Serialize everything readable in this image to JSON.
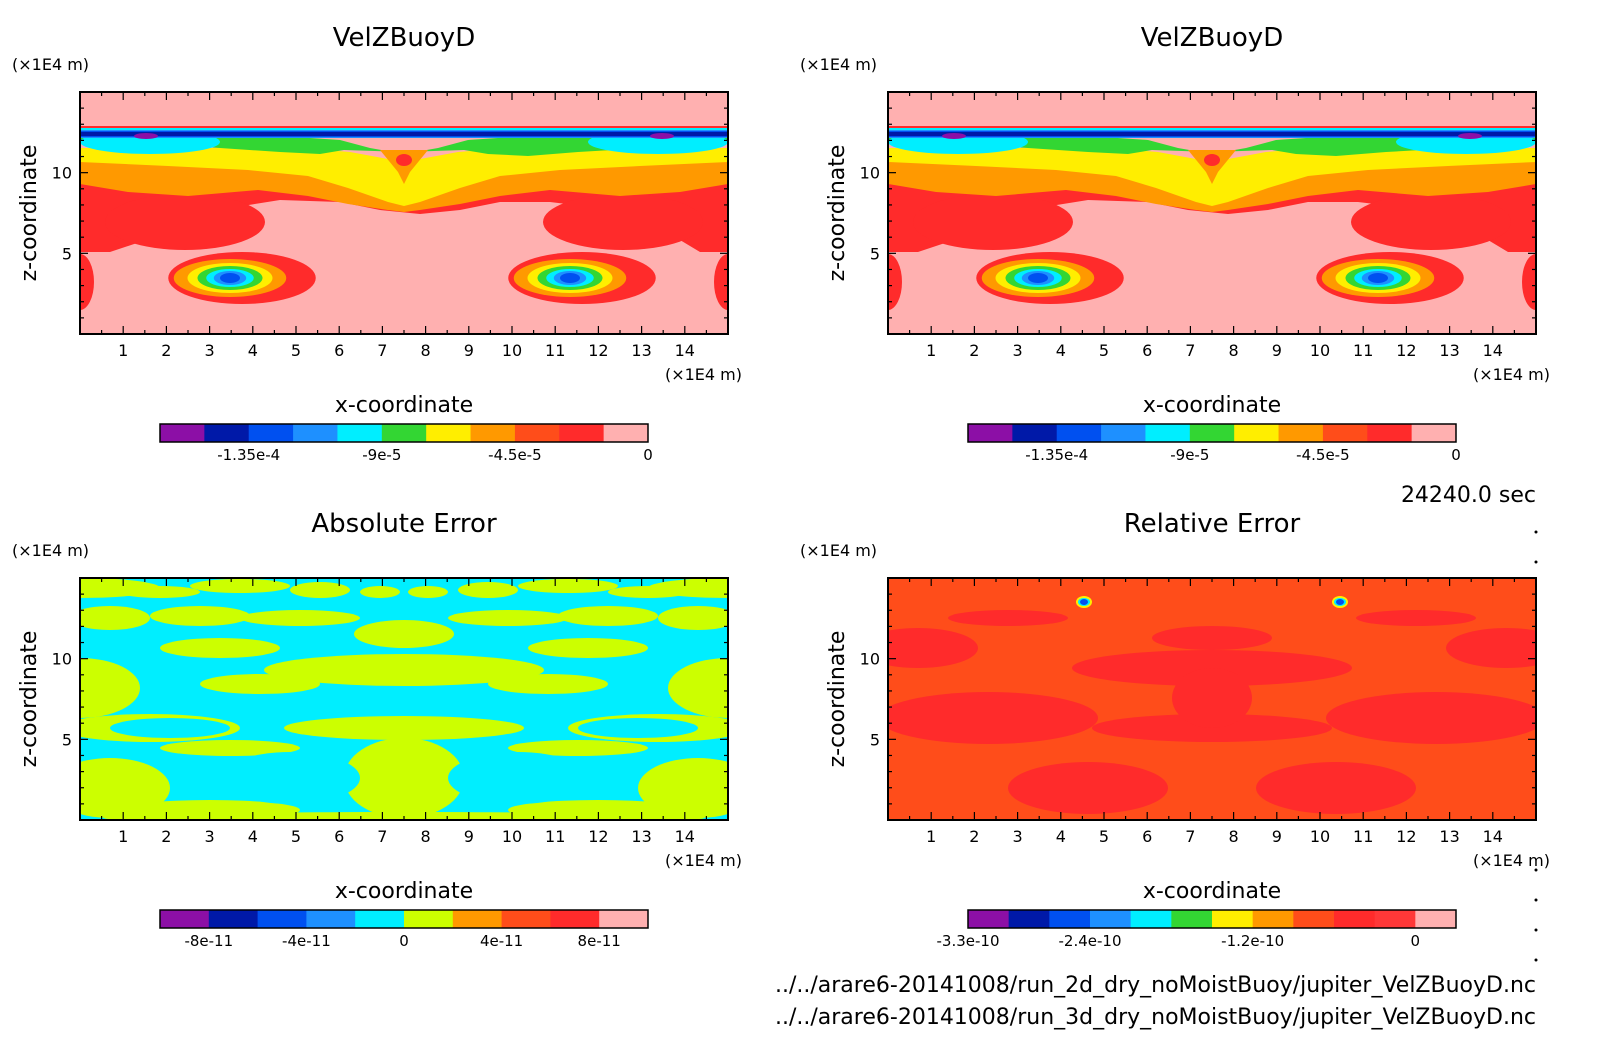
{
  "time_label": "24240.0 sec",
  "file_paths": [
    "../../arare6-20141008/run_2d_dry_noMoistBuoy/jupiter_VelZBuoyD.nc",
    "../../arare6-20141008/run_3d_dry_noMoistBuoy/jupiter_VelZBuoyD.nc"
  ],
  "colors": {
    "field_palette": [
      "#8c0fa6",
      "#0019a8",
      "#0050f0",
      "#1e90ff",
      "#00eeff",
      "#33d633",
      "#ffee00",
      "#ff9900",
      "#ff4d1a",
      "#ff2b2b",
      "#ffb0b0"
    ],
    "abs_palette": [
      "#8c0fa6",
      "#0019a8",
      "#0050f0",
      "#1e90ff",
      "#00eeff",
      "#ccff00",
      "#ff9900",
      "#ff4d1a",
      "#ff2b2b",
      "#ffb0b0"
    ],
    "rel_palette": [
      "#8c0fa6",
      "#0019a8",
      "#0050f0",
      "#1e90ff",
      "#00eeff",
      "#33d633",
      "#ffee00",
      "#ff9900",
      "#ff4d1a",
      "#ff2b2b",
      "#ff3838",
      "#ffb0b0"
    ]
  },
  "chart_data": [
    {
      "id": "panel_tl",
      "type": "heatmap",
      "title": "VelZBuoyD",
      "xlabel": "x-coordinate",
      "ylabel": "z-coordinate",
      "x_unit": "(×1E4 m)",
      "y_unit": "(×1E4 m)",
      "xlim": [
        0,
        15
      ],
      "ylim": [
        0,
        15
      ],
      "x_ticks": [
        "1",
        "2",
        "3",
        "4",
        "5",
        "6",
        "7",
        "8",
        "9",
        "10",
        "11",
        "12",
        "13",
        "14"
      ],
      "y_ticks": [
        "5",
        "10"
      ],
      "field": "buoy",
      "colorbar_labels": [
        "-1.35e-4",
        "-9e-5",
        "-4.5e-5",
        "0"
      ],
      "colorbar_values": [
        -0.000135,
        -9e-05,
        -4.5e-05,
        0
      ],
      "colorbar_range": [
        -0.000165,
        0.0
      ]
    },
    {
      "id": "panel_tr",
      "type": "heatmap",
      "title": "VelZBuoyD",
      "xlabel": "x-coordinate",
      "ylabel": "z-coordinate",
      "x_unit": "(×1E4 m)",
      "y_unit": "(×1E4 m)",
      "xlim": [
        0,
        15
      ],
      "ylim": [
        0,
        15
      ],
      "x_ticks": [
        "1",
        "2",
        "3",
        "4",
        "5",
        "6",
        "7",
        "8",
        "9",
        "10",
        "11",
        "12",
        "13",
        "14"
      ],
      "y_ticks": [
        "5",
        "10"
      ],
      "field": "buoy",
      "colorbar_labels": [
        "-1.35e-4",
        "-9e-5",
        "-4.5e-5",
        "0"
      ],
      "colorbar_values": [
        -0.000135,
        -9e-05,
        -4.5e-05,
        0
      ],
      "colorbar_range": [
        -0.000165,
        0.0
      ]
    },
    {
      "id": "panel_bl",
      "type": "heatmap",
      "title": "Absolute Error",
      "xlabel": "x-coordinate",
      "ylabel": "z-coordinate",
      "x_unit": "(×1E4 m)",
      "y_unit": "(×1E4 m)",
      "xlim": [
        0,
        15
      ],
      "ylim": [
        0,
        15
      ],
      "x_ticks": [
        "1",
        "2",
        "3",
        "4",
        "5",
        "6",
        "7",
        "8",
        "9",
        "10",
        "11",
        "12",
        "13",
        "14"
      ],
      "y_ticks": [
        "5",
        "10"
      ],
      "field": "abs",
      "colorbar_labels": [
        "-8e-11",
        "-4e-11",
        "0",
        "4e-11",
        "8e-11"
      ],
      "colorbar_values": [
        -8e-11,
        -4e-11,
        0,
        4e-11,
        8e-11
      ],
      "colorbar_range": [
        -1e-10,
        1e-10
      ]
    },
    {
      "id": "panel_br",
      "type": "heatmap",
      "title": "Relative Error",
      "xlabel": "x-coordinate",
      "ylabel": "z-coordinate",
      "x_unit": "(×1E4 m)",
      "y_unit": "(×1E4 m)",
      "xlim": [
        0,
        15
      ],
      "ylim": [
        0,
        15
      ],
      "x_ticks": [
        "1",
        "2",
        "3",
        "4",
        "5",
        "6",
        "7",
        "8",
        "9",
        "10",
        "11",
        "12",
        "13",
        "14"
      ],
      "y_ticks": [
        "5",
        "10"
      ],
      "field": "rel",
      "colorbar_labels": [
        "-3.3e-10",
        "-2.4e-10",
        "-1.2e-10",
        "0"
      ],
      "colorbar_values": [
        -3.3e-10,
        -2.4e-10,
        -1.2e-10,
        0
      ],
      "colorbar_range": [
        -3.3e-10,
        3e-11
      ]
    }
  ]
}
